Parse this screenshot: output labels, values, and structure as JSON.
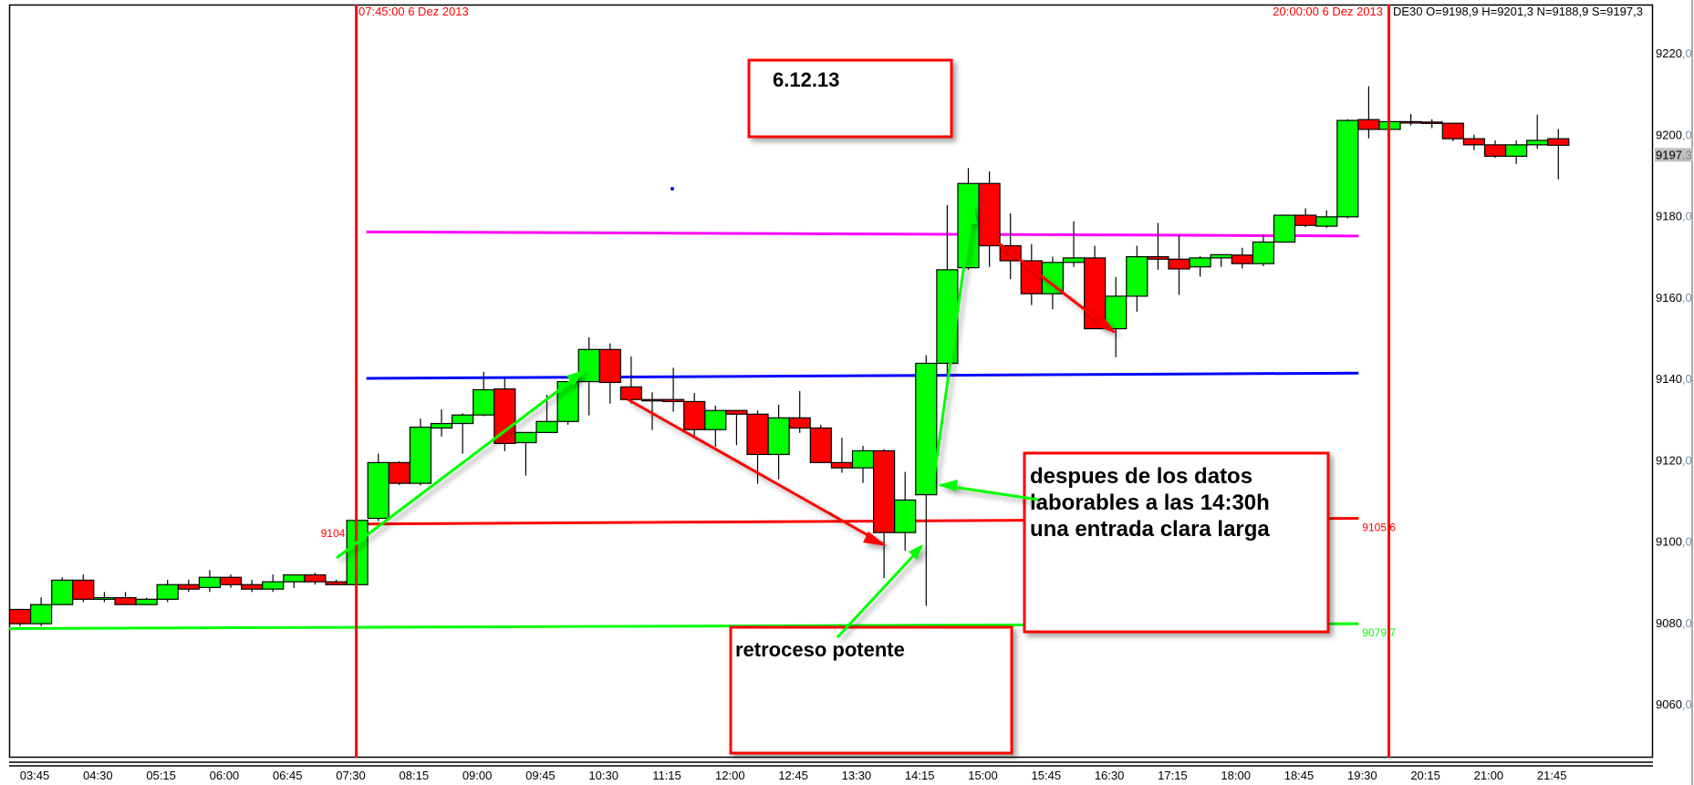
{
  "header": {
    "instrument_readout": "DE30 O=9198,9 H=9201,3 N=9188,9 S=9197,3",
    "cursor_right_label": "20:00:00 6 Dez 2013",
    "cursor_left_label": "07:45:00 6 Dez 2013"
  },
  "colors": {
    "bull": "#00ff00",
    "bear": "#ff0000",
    "cursor": "#ff0000",
    "level_magenta": "#ff00ff",
    "level_blue": "#0000ff",
    "level_red": "#ff0000",
    "level_green": "#00ff00",
    "annotation_border": "#ff0000"
  },
  "annotations": {
    "date_box": "6.12.13",
    "news_box": [
      "despues de los datos",
      "laborables a las 14:30h",
      "una entrada clara larga"
    ],
    "pullback_box": "retroceso potente"
  },
  "chart_data": {
    "type": "candlestick",
    "interval_minutes": 15,
    "y_axis_side": "right",
    "ylim": [
      9050,
      9230
    ],
    "y_ticks": [
      "9220,0",
      "9200,0",
      "9180,0",
      "9160,0",
      "9140,0",
      "9120,0",
      "9100,0",
      "9080,0",
      "9060,0"
    ],
    "y_tick_values": [
      9220,
      9200,
      9180,
      9160,
      9140,
      9120,
      9100,
      9080,
      9060
    ],
    "last_price_label": "9197,3",
    "last_price": 9197.3,
    "x_ticks": [
      "03:45",
      "04:30",
      "05:15",
      "06:00",
      "06:45",
      "07:30",
      "08:15",
      "09:00",
      "09:45",
      "10:30",
      "11:15",
      "12:00",
      "12:45",
      "13:30",
      "14:15",
      "15:00",
      "15:45",
      "16:30",
      "17:15",
      "18:00",
      "18:45",
      "19:30",
      "20:15",
      "21:00",
      "21:45"
    ],
    "cursor_lines": [
      "07:45",
      "20:00"
    ],
    "levels": [
      {
        "color": "magenta",
        "from": "07:45",
        "to": "19:30",
        "start": 9176.0,
        "end": 9175.0
      },
      {
        "color": "blue",
        "from": "07:45",
        "to": "19:30",
        "start": 9140.0,
        "end": 9141.3
      },
      {
        "color": "red",
        "from": "07:45",
        "to": "19:30",
        "start": 9104.2,
        "end": 9105.6,
        "start_label": "9104,2",
        "end_label": "9105,6"
      },
      {
        "color": "green",
        "from": "03:45",
        "to": "19:30",
        "start": 9078.5,
        "end": 9079.7,
        "end_label": "9079,7"
      }
    ],
    "grid": false,
    "candles_ohlc": [
      [
        "03:45",
        9083.2,
        9083.2,
        9079.1,
        9079.7
      ],
      [
        "04:00",
        9079.7,
        9086.2,
        9079.1,
        9084.4
      ],
      [
        "04:15",
        9084.4,
        9091.1,
        9084.4,
        9090.4
      ],
      [
        "04:30",
        9090.4,
        9091.8,
        9085.0,
        9085.7
      ],
      [
        "04:45",
        9085.7,
        9087.5,
        9085.0,
        9086.1
      ],
      [
        "05:00",
        9086.1,
        9087.5,
        9084.4,
        9084.4
      ],
      [
        "05:15",
        9084.4,
        9086.1,
        9084.4,
        9085.7
      ],
      [
        "05:30",
        9085.7,
        9090.5,
        9085.0,
        9089.3
      ],
      [
        "05:45",
        9089.3,
        9090.5,
        9087.5,
        9088.2
      ],
      [
        "06:00",
        9088.6,
        9092.9,
        9087.5,
        9091.1
      ],
      [
        "06:15",
        9091.1,
        9091.8,
        9088.5,
        9089.3
      ],
      [
        "06:30",
        9089.3,
        9090.5,
        9087.5,
        9088.2
      ],
      [
        "06:45",
        9088.2,
        9091.8,
        9087.5,
        9090.0
      ],
      [
        "07:00",
        9090.0,
        9091.8,
        9088.5,
        9091.7
      ],
      [
        "07:15",
        9091.7,
        9092.2,
        9089.3,
        9090.0
      ],
      [
        "07:30",
        9090.0,
        9090.5,
        9089.3,
        9089.3
      ],
      [
        "07:45",
        9089.3,
        9105.1,
        9089.3,
        9105.1
      ],
      [
        "08:00",
        9105.6,
        9121.5,
        9104.9,
        9119.3
      ],
      [
        "08:15",
        9119.3,
        9119.6,
        9113.8,
        9114.2
      ],
      [
        "08:30",
        9114.2,
        9130.1,
        9113.7,
        9128.0
      ],
      [
        "08:45",
        9127.8,
        9132.4,
        9125.7,
        9128.9
      ],
      [
        "09:00",
        9128.9,
        9131.4,
        9121.5,
        9131.0
      ],
      [
        "09:15",
        9131.0,
        9141.6,
        9130.7,
        9137.2
      ],
      [
        "09:30",
        9137.4,
        9139.9,
        9122.1,
        9124.0
      ],
      [
        "09:45",
        9124.2,
        9126.7,
        9116.1,
        9126.7
      ],
      [
        "10:00",
        9126.7,
        9136.0,
        9126.7,
        9129.4
      ],
      [
        "10:15",
        9129.4,
        9139.2,
        9128.6,
        9139.2
      ],
      [
        "10:30",
        9139.2,
        9150.1,
        9130.9,
        9147.1
      ],
      [
        "10:45",
        9147.1,
        9148.6,
        9133.8,
        9139.0
      ],
      [
        "11:00",
        9137.9,
        9145.4,
        9133.8,
        9134.8
      ],
      [
        "11:15",
        9134.8,
        9136.6,
        9127.3,
        9134.5
      ],
      [
        "11:30",
        9134.8,
        9142.6,
        9131.8,
        9134.3
      ],
      [
        "11:45",
        9134.3,
        9136.4,
        9125.3,
        9127.4
      ],
      [
        "12:00",
        9127.4,
        9133.3,
        9123.2,
        9132.1
      ],
      [
        "12:15",
        9132.1,
        9132.1,
        9123.6,
        9131.2
      ],
      [
        "12:30",
        9131.2,
        9132.1,
        9114.1,
        9121.3
      ],
      [
        "12:45",
        9121.3,
        9133.5,
        9115.2,
        9130.3
      ],
      [
        "13:00",
        9130.3,
        9136.9,
        9126.6,
        9127.8
      ],
      [
        "13:15",
        9127.8,
        9128.6,
        9119.3,
        9119.3
      ],
      [
        "13:30",
        9119.3,
        9125.4,
        9116.8,
        9118.0
      ],
      [
        "13:45",
        9118.0,
        9123.4,
        9114.3,
        9122.2
      ],
      [
        "14:00",
        9122.2,
        9122.6,
        9090.9,
        9102.1
      ],
      [
        "14:15",
        9102.1,
        9117.0,
        9097.6,
        9110.1
      ],
      [
        "14:30",
        9111.4,
        9145.7,
        9084.1,
        9143.7
      ],
      [
        "14:45",
        9143.7,
        9182.6,
        9139.0,
        9166.7
      ],
      [
        "15:00",
        9167.2,
        9191.7,
        9166.7,
        9187.9
      ],
      [
        "15:15",
        9187.9,
        9190.9,
        9167.4,
        9172.6
      ],
      [
        "15:30",
        9172.6,
        9180.6,
        9164.4,
        9168.9
      ],
      [
        "15:45",
        9168.9,
        9173.0,
        9158.0,
        9160.8
      ],
      [
        "16:00",
        9160.8,
        9169.9,
        9157.0,
        9168.5
      ],
      [
        "16:15",
        9168.5,
        9178.6,
        9167.4,
        9169.6
      ],
      [
        "16:30",
        9169.6,
        9172.6,
        9152.2,
        9152.2
      ],
      [
        "16:45",
        9152.2,
        9164.9,
        9145.2,
        9160.2
      ],
      [
        "17:00",
        9160.2,
        9172.6,
        9156.4,
        9169.9
      ],
      [
        "17:15",
        9169.9,
        9178.2,
        9166.7,
        9169.3
      ],
      [
        "17:30",
        9169.3,
        9175.2,
        9160.5,
        9166.9
      ],
      [
        "17:45",
        9167.4,
        9170.0,
        9165.0,
        9169.6
      ],
      [
        "18:00",
        9169.6,
        9170.4,
        9167.4,
        9170.4
      ],
      [
        "18:15",
        9170.3,
        9172.1,
        9167.0,
        9168.2
      ],
      [
        "18:30",
        9168.2,
        9175.3,
        9167.6,
        9173.5
      ],
      [
        "18:45",
        9173.5,
        9180.1,
        9173.5,
        9180.1
      ],
      [
        "19:00",
        9180.1,
        9181.8,
        9177.2,
        9177.6
      ],
      [
        "19:15",
        9177.4,
        9181.3,
        9177.0,
        9179.7
      ],
      [
        "19:30",
        9179.7,
        9203.7,
        9179.3,
        9203.4
      ],
      [
        "19:45",
        9203.6,
        9211.8,
        9199.0,
        9201.2
      ],
      [
        "20:00",
        9201.2,
        9203.1,
        9201.2,
        9203.1
      ],
      [
        "20:15",
        9203.1,
        9205.0,
        9202.2,
        9203.0
      ],
      [
        "20:30",
        9203.0,
        9203.7,
        9201.5,
        9202.7
      ],
      [
        "20:45",
        9202.7,
        9202.7,
        9198.3,
        9198.9
      ],
      [
        "21:00",
        9198.9,
        9199.9,
        9196.1,
        9197.4
      ],
      [
        "21:15",
        9197.4,
        9198.5,
        9194.2,
        9194.6
      ],
      [
        "21:30",
        9194.6,
        9198.5,
        9192.7,
        9197.4
      ],
      [
        "21:45",
        9197.4,
        9204.8,
        9196.4,
        9198.5
      ],
      [
        "22:00",
        9198.9,
        9201.3,
        9188.9,
        9197.3
      ]
    ]
  }
}
